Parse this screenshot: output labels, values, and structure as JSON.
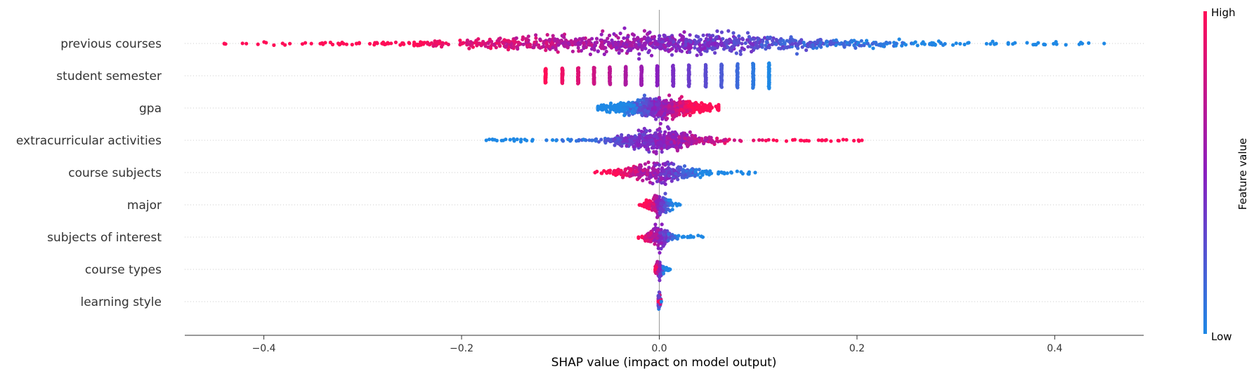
{
  "chart_data": {
    "type": "beeswarm",
    "xlabel": "SHAP value (impact on model output)",
    "xlim": [
      -0.48,
      0.49
    ],
    "x_ticks": [
      -0.4,
      -0.2,
      0.0,
      0.2,
      0.4
    ],
    "x_tick_labels": [
      "−0.4",
      "−0.2",
      "0.0",
      "0.2",
      "0.4"
    ],
    "grid": "dotted row guides",
    "colorbar": {
      "label": "Feature value",
      "high_label": "High",
      "low_label": "Low",
      "high_color": "#ff0d57",
      "mid_color": "#8a1fbf",
      "low_color": "#1e88e5"
    },
    "features": [
      {
        "name": "previous courses",
        "min": -0.44,
        "max": 0.45,
        "spread": 0.13,
        "density": 1100,
        "low_side": "right"
      },
      {
        "name": "student semester",
        "discrete": [
          -0.115,
          -0.098,
          -0.082,
          -0.066,
          -0.05,
          -0.034,
          -0.018,
          -0.002,
          0.014,
          0.03,
          0.047,
          0.063,
          0.079,
          0.095,
          0.111
        ],
        "low_side": "right"
      },
      {
        "name": "gpa",
        "min": -0.062,
        "max": 0.06,
        "spread": 0.03,
        "density": 700,
        "low_side": "left"
      },
      {
        "name": "extracurricular activities",
        "min": -0.175,
        "max": 0.205,
        "spread": 0.03,
        "density": 600,
        "low_side": "left"
      },
      {
        "name": "course subjects",
        "min": -0.065,
        "max": 0.097,
        "spread": 0.025,
        "density": 350,
        "low_side": "right"
      },
      {
        "name": "major",
        "min": -0.02,
        "max": 0.021,
        "spread": 0.008,
        "density": 180,
        "low_side": "right"
      },
      {
        "name": "subjects of interest",
        "min": -0.021,
        "max": 0.044,
        "spread": 0.008,
        "density": 200,
        "low_side": "right"
      },
      {
        "name": "course types",
        "min": -0.004,
        "max": 0.011,
        "spread": 0.003,
        "density": 90,
        "low_side": "right"
      },
      {
        "name": "learning style",
        "min": -0.001,
        "max": 0.002,
        "spread": 0.0008,
        "density": 60,
        "low_side": "mixed"
      }
    ]
  }
}
